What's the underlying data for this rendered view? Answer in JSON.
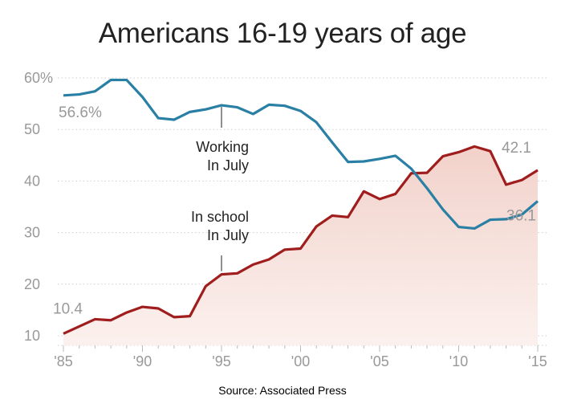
{
  "chart_data": {
    "type": "line",
    "title": "Americans 16-19 years of age",
    "source": "Source: Associated Press",
    "xlim": [
      1985,
      2015
    ],
    "ylim": [
      10,
      60
    ],
    "y_ticks": [
      10,
      20,
      30,
      40,
      50,
      60
    ],
    "y_tick_labels": [
      "10",
      "20",
      "30",
      "40",
      "50",
      "60%"
    ],
    "x_ticks": [
      1985,
      1990,
      1995,
      2000,
      2005,
      2010,
      2015
    ],
    "x_tick_labels": [
      "'85",
      "'90",
      "'95",
      "'00",
      "'05",
      "'10",
      "'15"
    ],
    "grid": "horizontal dotted",
    "series": [
      {
        "name": "Working In July",
        "color": "#2a7fa5",
        "x": [
          1985,
          1986,
          1987,
          1988,
          1989,
          1990,
          1991,
          1992,
          1993,
          1994,
          1995,
          1996,
          1997,
          1998,
          1999,
          2000,
          2001,
          2002,
          2003,
          2004,
          2005,
          2006,
          2007,
          2008,
          2009,
          2010,
          2011,
          2012,
          2013,
          2014,
          2015
        ],
        "y": [
          56.6,
          56.8,
          57.4,
          59.6,
          59.6,
          56.3,
          52.2,
          51.9,
          53.4,
          53.9,
          54.7,
          54.3,
          53.0,
          54.8,
          54.6,
          53.6,
          51.4,
          47.5,
          43.7,
          43.8,
          44.3,
          44.9,
          42.4,
          38.6,
          34.5,
          31.1,
          30.8,
          32.5,
          32.6,
          33.5,
          36.1
        ],
        "first_value_label": "56.6%",
        "last_value_label": "36.1"
      },
      {
        "name": "In school In July",
        "color": "#a01d1d",
        "area_fill": "#f4d9d3",
        "x": [
          1985,
          1986,
          1987,
          1988,
          1989,
          1990,
          1991,
          1992,
          1993,
          1994,
          1995,
          1996,
          1997,
          1998,
          1999,
          2000,
          2001,
          2002,
          2003,
          2004,
          2005,
          2006,
          2007,
          2008,
          2009,
          2010,
          2011,
          2012,
          2013,
          2014,
          2015
        ],
        "y": [
          10.4,
          11.8,
          13.2,
          13.0,
          14.5,
          15.6,
          15.3,
          13.6,
          13.8,
          19.6,
          21.9,
          22.1,
          23.8,
          24.8,
          26.7,
          26.9,
          31.2,
          33.3,
          33.0,
          38.0,
          36.5,
          37.5,
          41.5,
          41.6,
          44.8,
          45.6,
          46.7,
          45.8,
          39.3,
          40.2,
          42.1
        ],
        "first_value_label": "10.4",
        "last_value_label": "42.1"
      }
    ],
    "annotations": [
      {
        "series": "Working In July",
        "x": 1995,
        "lines": [
          "Working",
          "In July"
        ]
      },
      {
        "series": "In school In July",
        "x": 1995,
        "lines": [
          "In school",
          "In July"
        ]
      }
    ]
  }
}
